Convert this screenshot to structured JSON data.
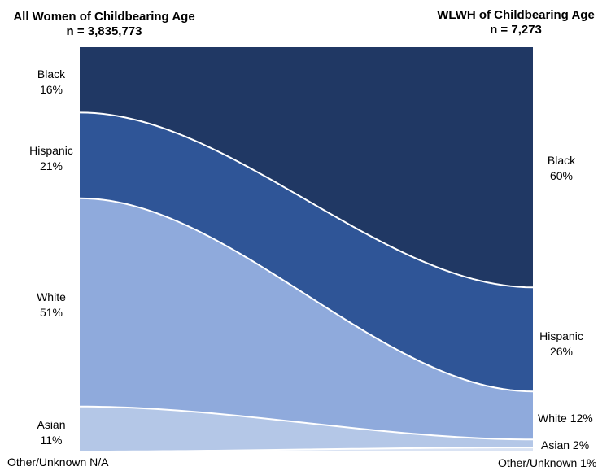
{
  "chart_data": {
    "type": "area",
    "left_group": {
      "title": "All Women of Childbearing Age",
      "n_label": "n = 3,835,773"
    },
    "right_group": {
      "title": "WLWH of Childbearing Age",
      "n_label": "n = 7,273"
    },
    "series": [
      {
        "name": "Black",
        "left": 16,
        "right": 60,
        "left_label": "16%",
        "right_label": "60%",
        "color": "#203864"
      },
      {
        "name": "Hispanic",
        "left": 21,
        "right": 26,
        "left_label": "21%",
        "right_label": "26%",
        "color": "#2f5597"
      },
      {
        "name": "White",
        "left": 51,
        "right": 12,
        "left_label": "51%",
        "right_label": "12%",
        "color": "#8faadc"
      },
      {
        "name": "Asian",
        "left": 11,
        "right": 2,
        "left_label": "11%",
        "right_label": "2%",
        "color": "#b4c7e7"
      },
      {
        "name": "Other/Unknown",
        "left": 0,
        "right": 1,
        "left_label": "N/A",
        "right_label": "1%",
        "color": "#dae3f3"
      }
    ]
  }
}
